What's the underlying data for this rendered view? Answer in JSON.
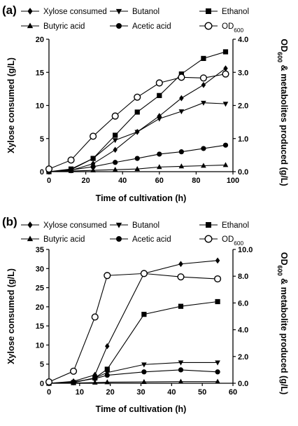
{
  "chart_data": [
    {
      "type": "line",
      "panel_label": "(a)",
      "xlabel": "Time of cultivation (h)",
      "ylabel": "Xylose consumed (g/L)",
      "y2label_parts": [
        "OD",
        "600",
        " & metabolites produced (g/L)"
      ],
      "xlim": [
        0,
        100
      ],
      "ylim": [
        0,
        20
      ],
      "y2lim": [
        0,
        4
      ],
      "xticks": [
        0,
        20,
        40,
        60,
        80,
        100
      ],
      "yticks": [
        0,
        5,
        10,
        15,
        20
      ],
      "y2ticks": [
        "0.0",
        "1.0",
        "2.0",
        "3.0",
        "4.0"
      ],
      "legend": [
        {
          "key": "xylose",
          "label": "Xylose consumed",
          "marker": "diamond"
        },
        {
          "key": "butanol",
          "label": "Butanol",
          "marker": "triangle-down"
        },
        {
          "key": "ethanol",
          "label": "Ethanol",
          "marker": "square"
        },
        {
          "key": "butyric",
          "label": "Butyric acid",
          "marker": "triangle-up"
        },
        {
          "key": "acetic",
          "label": "Acetic acid",
          "marker": "circle"
        },
        {
          "key": "od",
          "label_parts": [
            "OD",
            "600"
          ],
          "marker": "circle-open"
        }
      ],
      "series": [
        {
          "key": "xylose",
          "axis": "left",
          "marker": "diamond",
          "x": [
            0,
            12,
            24,
            36,
            48,
            60,
            72,
            84,
            96
          ],
          "y": [
            0,
            0.2,
            1.2,
            3.3,
            6.0,
            8.4,
            11.1,
            13.1,
            15.6
          ]
        },
        {
          "key": "butanol",
          "axis": "right",
          "marker": "triangle-down",
          "x": [
            0,
            12,
            24,
            36,
            48,
            60,
            72,
            84,
            96
          ],
          "y": [
            0,
            0.06,
            0.4,
            0.95,
            1.2,
            1.6,
            1.82,
            2.08,
            2.05
          ]
        },
        {
          "key": "ethanol",
          "axis": "right",
          "marker": "square",
          "x": [
            0,
            12,
            24,
            36,
            48,
            60,
            72,
            84,
            96
          ],
          "y": [
            0,
            0.08,
            0.4,
            1.1,
            1.8,
            2.3,
            2.95,
            3.42,
            3.62
          ]
        },
        {
          "key": "butyric",
          "axis": "right",
          "marker": "triangle-up",
          "x": [
            0,
            12,
            24,
            36,
            48,
            60,
            72,
            84,
            96
          ],
          "y": [
            0,
            0.02,
            0.04,
            0.06,
            0.08,
            0.14,
            0.16,
            0.18,
            0.2
          ]
        },
        {
          "key": "acetic",
          "axis": "right",
          "marker": "circle",
          "x": [
            0,
            12,
            24,
            36,
            48,
            60,
            72,
            84,
            96
          ],
          "y": [
            0,
            0.05,
            0.15,
            0.28,
            0.4,
            0.53,
            0.6,
            0.7,
            0.8
          ]
        },
        {
          "key": "od",
          "axis": "right",
          "marker": "circle-open",
          "x": [
            0,
            12,
            24,
            36,
            48,
            60,
            72,
            84,
            96
          ],
          "y": [
            0.08,
            0.35,
            1.07,
            1.68,
            2.25,
            2.68,
            2.85,
            2.83,
            2.95
          ]
        }
      ]
    },
    {
      "type": "line",
      "panel_label": "(b)",
      "xlabel": "Time of cultivation (h)",
      "ylabel": "Xylose consumed (g/L)",
      "y2label_parts": [
        "OD",
        "600",
        " & metabolite produced (g/L)"
      ],
      "xlim": [
        0,
        60
      ],
      "ylim": [
        0,
        35
      ],
      "y2lim": [
        0,
        10
      ],
      "xticks": [
        0,
        10,
        20,
        30,
        40,
        50,
        60
      ],
      "yticks": [
        0,
        5,
        10,
        15,
        20,
        25,
        30,
        35
      ],
      "y2ticks": [
        "0.0",
        "2.0",
        "4.0",
        "6.0",
        "8.0",
        "10.0"
      ],
      "legend": [
        {
          "key": "xylose",
          "label": "Xylose consumed",
          "marker": "diamond"
        },
        {
          "key": "butanol",
          "label": "Butanol",
          "marker": "triangle-down"
        },
        {
          "key": "ethanol",
          "label": "Ethanol",
          "marker": "square"
        },
        {
          "key": "butyric",
          "label": "Butyric acid",
          "marker": "triangle-up"
        },
        {
          "key": "acetic",
          "label": "Acetic acid",
          "marker": "circle"
        },
        {
          "key": "od",
          "label_parts": [
            "OD",
            "600"
          ],
          "marker": "circle-open"
        }
      ],
      "series": [
        {
          "key": "xylose",
          "axis": "left",
          "marker": "diamond",
          "x": [
            0,
            8,
            15,
            19,
            31,
            43,
            55
          ],
          "y": [
            0,
            0.5,
            2.2,
            9.7,
            28.7,
            31.2,
            32.1
          ]
        },
        {
          "key": "butanol",
          "axis": "right",
          "marker": "triangle-down",
          "x": [
            0,
            8,
            15,
            19,
            31,
            43,
            55
          ],
          "y": [
            0,
            0.05,
            0.4,
            0.8,
            1.4,
            1.55,
            1.55
          ]
        },
        {
          "key": "ethanol",
          "axis": "right",
          "marker": "square",
          "x": [
            0,
            8,
            15,
            19,
            31,
            43,
            55
          ],
          "y": [
            0,
            0.05,
            0.4,
            1.05,
            5.15,
            5.75,
            6.1
          ]
        },
        {
          "key": "butyric",
          "axis": "right",
          "marker": "triangle-up",
          "x": [
            0,
            8,
            15,
            19,
            31,
            43,
            55
          ],
          "y": [
            0,
            0.02,
            0.05,
            0.08,
            0.1,
            0.12,
            0.12
          ]
        },
        {
          "key": "acetic",
          "axis": "right",
          "marker": "circle",
          "x": [
            0,
            8,
            15,
            19,
            31,
            43,
            55
          ],
          "y": [
            0,
            0.1,
            0.35,
            0.6,
            0.85,
            1.0,
            0.85
          ]
        },
        {
          "key": "od",
          "axis": "right",
          "marker": "circle-open",
          "x": [
            0,
            8,
            15,
            19,
            31,
            43,
            55
          ],
          "y": [
            0.1,
            0.9,
            4.95,
            8.05,
            8.2,
            7.95,
            7.8
          ]
        }
      ]
    }
  ]
}
